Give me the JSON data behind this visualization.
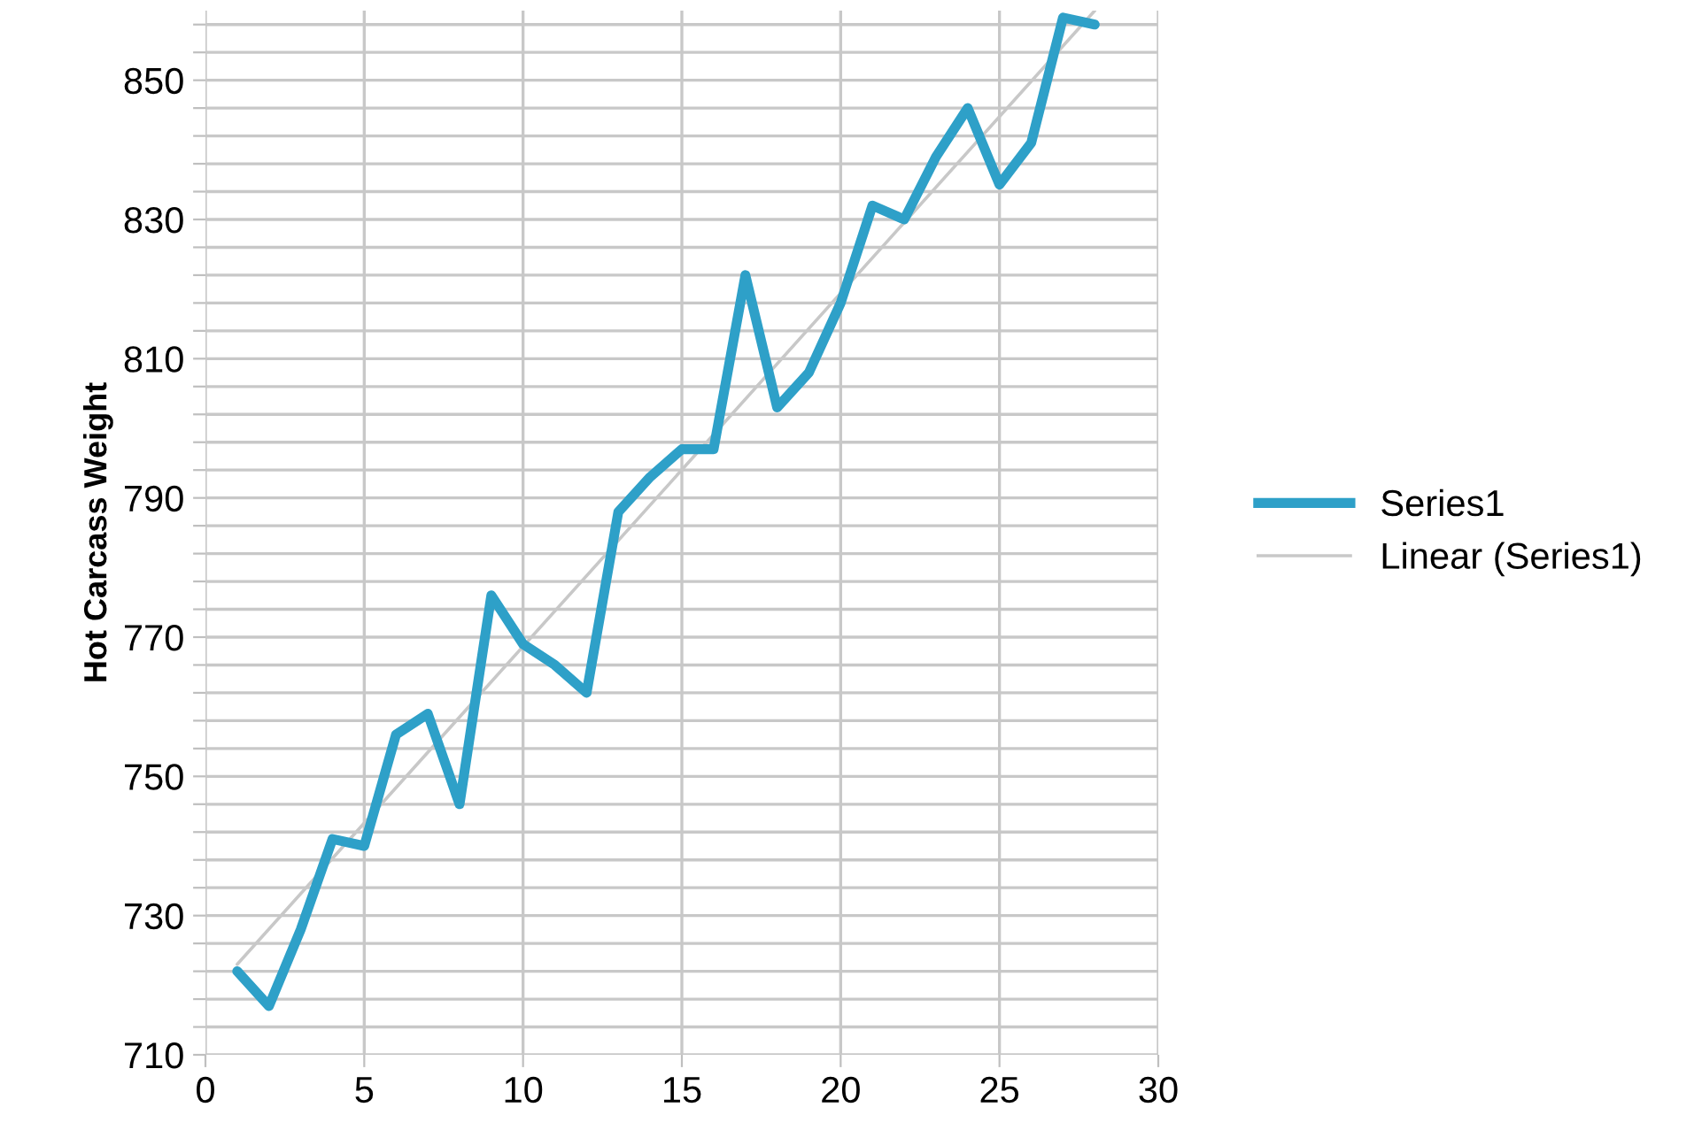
{
  "chart_data": {
    "type": "line",
    "ylabel": "Hot Carcass Weight",
    "x": [
      1,
      2,
      3,
      4,
      5,
      6,
      7,
      8,
      9,
      10,
      11,
      12,
      13,
      14,
      15,
      16,
      17,
      18,
      19,
      20,
      21,
      22,
      23,
      24,
      25,
      26,
      27,
      28
    ],
    "series": [
      {
        "name": "Series1",
        "color": "#2ea0c8",
        "values": [
          722,
          717,
          728,
          741,
          740,
          756,
          759,
          746,
          776,
          769,
          766,
          762,
          788,
          793,
          797,
          797,
          822,
          803,
          808,
          818,
          832,
          830,
          839,
          846,
          835,
          841,
          859,
          858
        ]
      },
      {
        "name": "Linear (Series1)",
        "color": "#c8c8c8",
        "x": [
          1,
          28
        ],
        "values": [
          723,
          860
        ]
      }
    ],
    "xlim": [
      0,
      30
    ],
    "xticks": [
      0,
      5,
      10,
      15,
      20,
      25,
      30
    ],
    "ylim": [
      710,
      860
    ],
    "yticks": [
      710,
      {
        "value": 714,
        "label": null
      },
      {
        "value": 718,
        "label": null
      },
      {
        "value": 722,
        "label": null
      },
      {
        "value": 726,
        "label": null
      },
      730,
      {
        "value": 734,
        "label": null
      },
      {
        "value": 738,
        "label": null
      },
      {
        "value": 742,
        "label": null
      },
      {
        "value": 746,
        "label": null
      },
      750,
      {
        "value": 754,
        "label": null
      },
      {
        "value": 758,
        "label": null
      },
      {
        "value": 762,
        "label": null
      },
      {
        "value": 766,
        "label": null
      },
      770,
      {
        "value": 774,
        "label": null
      },
      {
        "value": 778,
        "label": null
      },
      {
        "value": 782,
        "label": null
      },
      {
        "value": 786,
        "label": null
      },
      790,
      {
        "value": 794,
        "label": null
      },
      {
        "value": 798,
        "label": null
      },
      {
        "value": 802,
        "label": null
      },
      {
        "value": 806,
        "label": null
      },
      810,
      {
        "value": 814,
        "label": null
      },
      {
        "value": 818,
        "label": null
      },
      {
        "value": 822,
        "label": null
      },
      {
        "value": 826,
        "label": null
      },
      830,
      {
        "value": 834,
        "label": null
      },
      {
        "value": 838,
        "label": null
      },
      {
        "value": 842,
        "label": null
      },
      {
        "value": 846,
        "label": null
      },
      850,
      {
        "value": 854,
        "label": null
      },
      {
        "value": 858,
        "label": null
      }
    ],
    "grid": true,
    "legend": "right",
    "marker": "none",
    "line_style": "solid"
  }
}
